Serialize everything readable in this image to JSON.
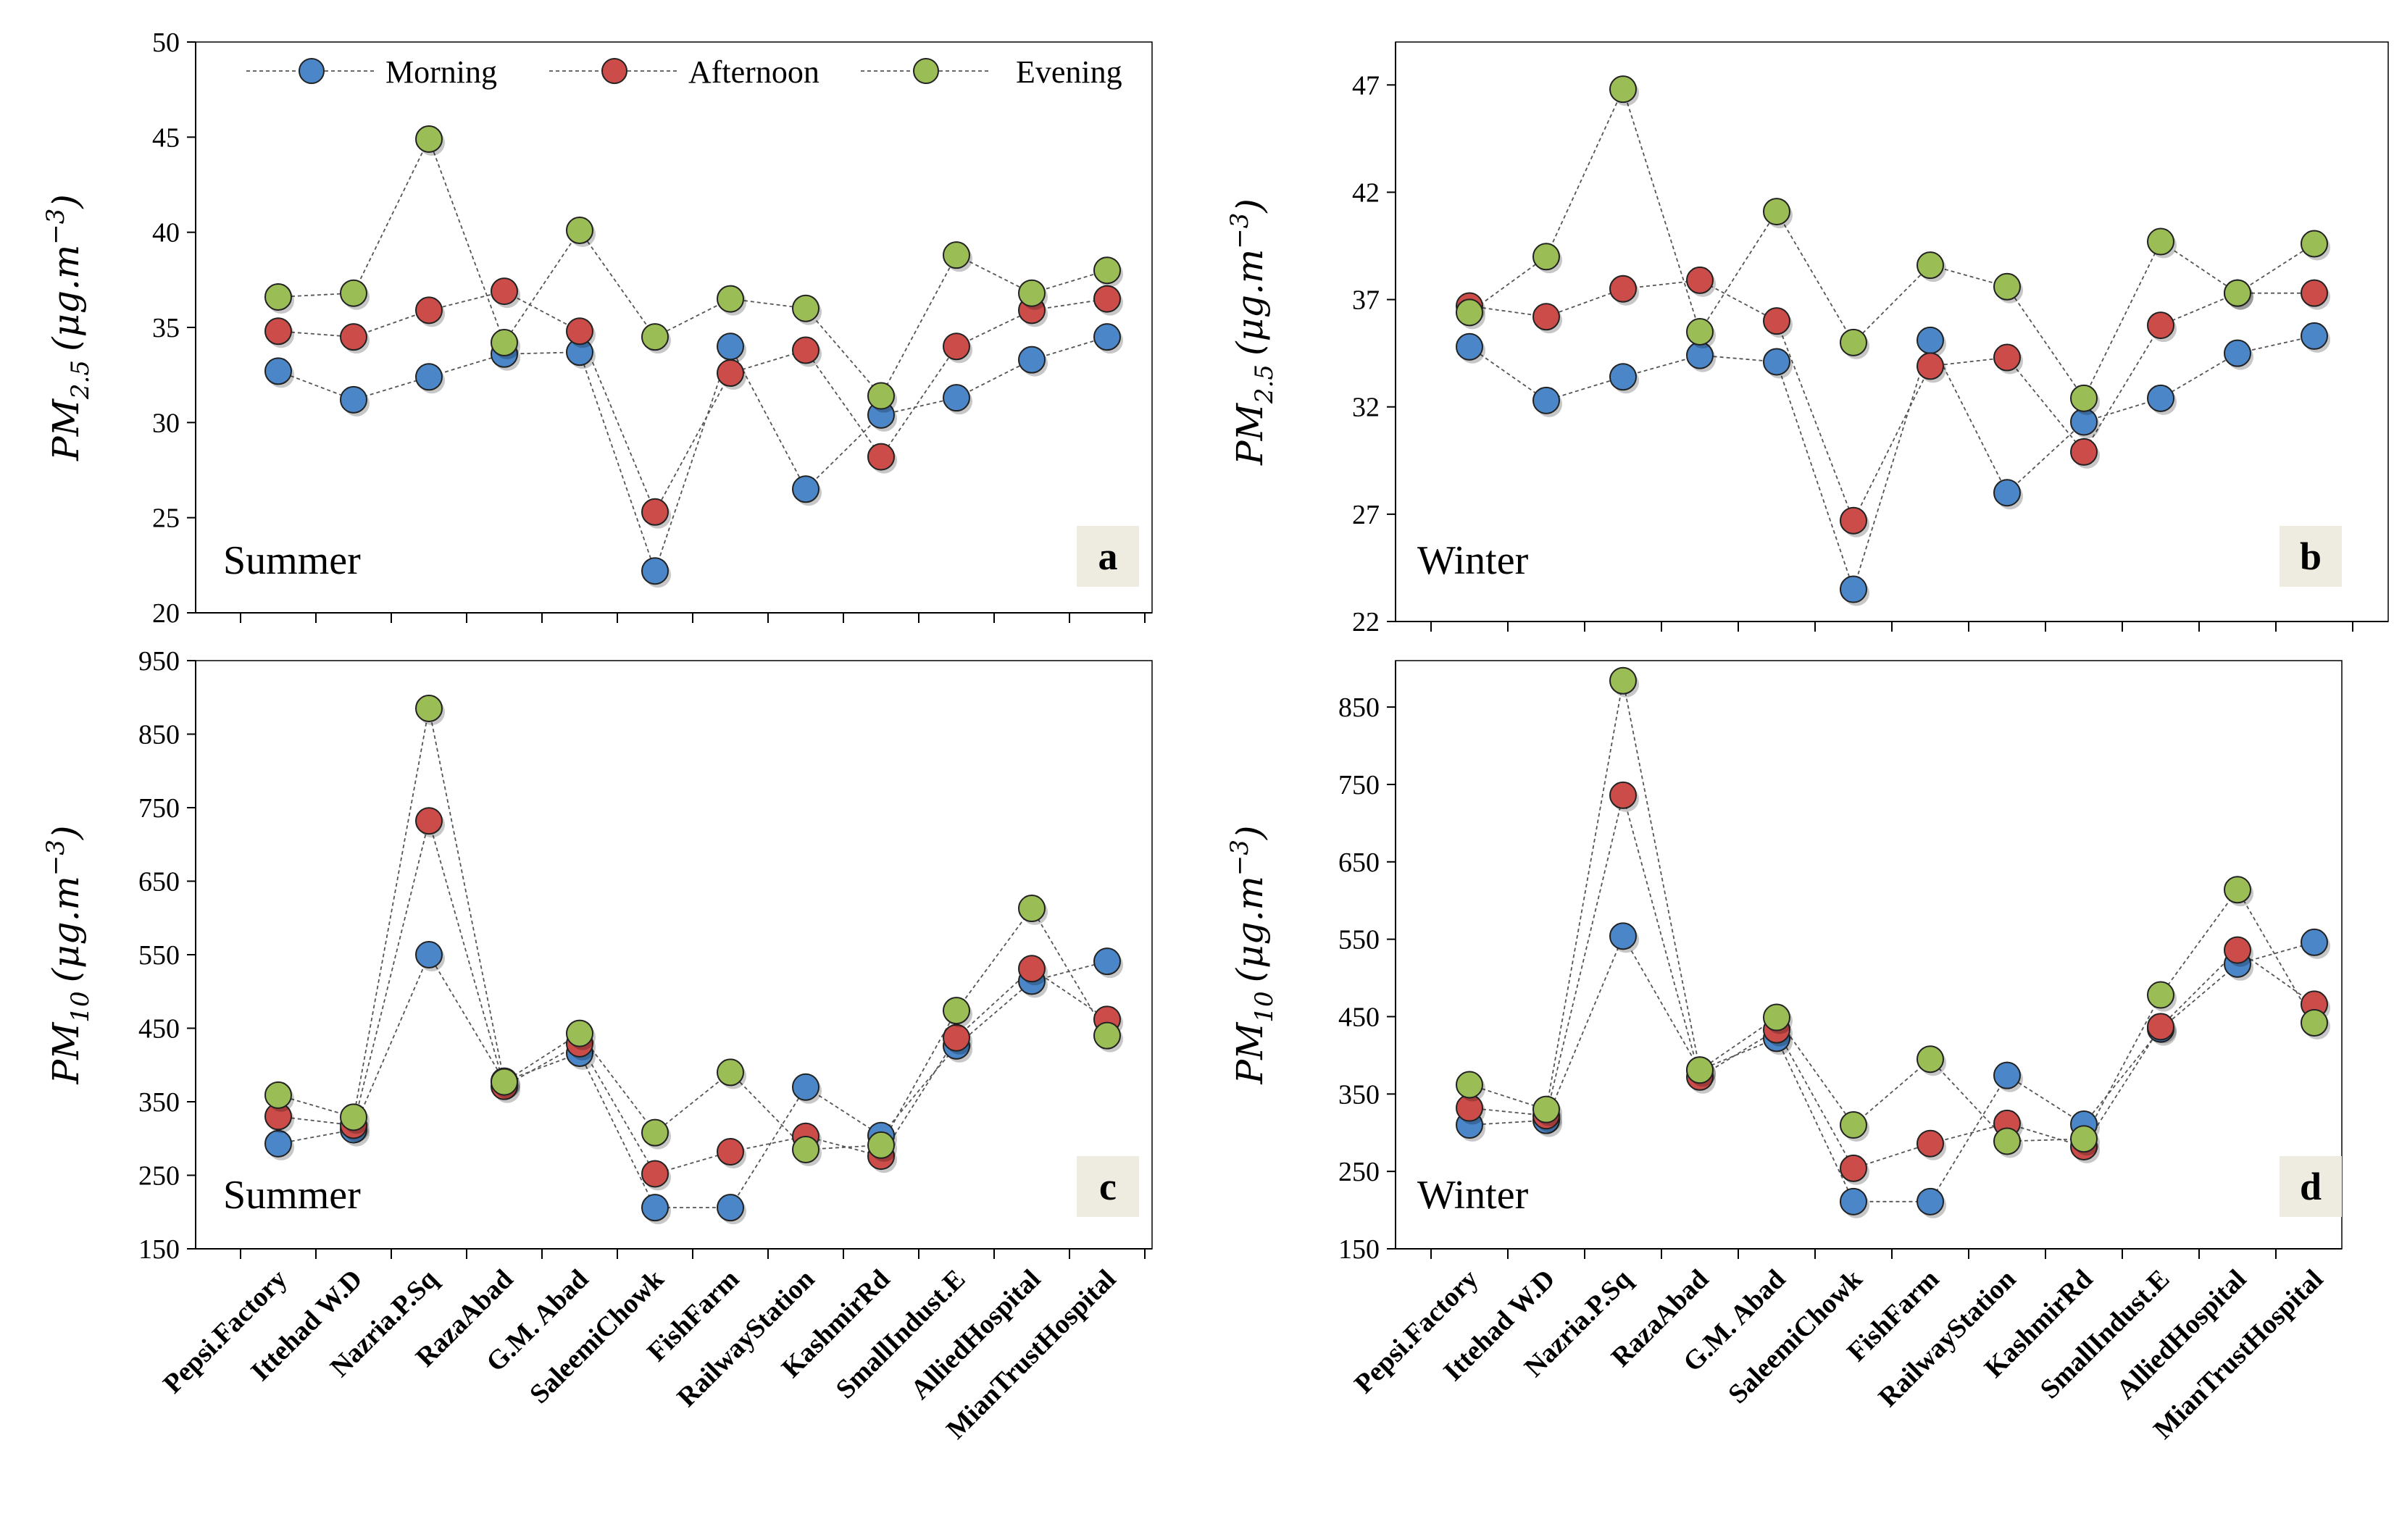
{
  "figure": {
    "legend": {
      "morning": "Morning",
      "afternoon": "Afternoon",
      "evening": "Evening"
    },
    "colors": {
      "Morning": "#4a86c8",
      "Afternoon": "#cc4c4a",
      "Evening": "#9bbd56"
    }
  },
  "chart_data": [
    {
      "id": "a",
      "type": "line",
      "panel_label": "a",
      "season": "Summer",
      "ylabel": "PM",
      "ylabel_sub": "2.5",
      "yunit_open": "(μg.m",
      "yunit_exp": "−3",
      "yunit_close": ")",
      "ylim": [
        20,
        50
      ],
      "yticks": [
        20,
        25,
        30,
        35,
        40,
        45,
        50
      ],
      "categories": [
        "Pepsi.Factory",
        "Ittehad W.D",
        "Nazria.P.Sq",
        "RazaAbad",
        "G.M. Abad",
        "SaleemiChowk",
        "FishFarm",
        "RailwayStation",
        "KashmirRd",
        "SmallIndust.E",
        "AlliedHospital",
        "MianTrustHospital"
      ],
      "series": [
        {
          "name": "Morning",
          "values": [
            32.7,
            31.2,
            32.4,
            33.6,
            33.7,
            22.2,
            34.0,
            26.5,
            30.4,
            31.3,
            33.3,
            34.5
          ]
        },
        {
          "name": "Afternoon",
          "values": [
            34.8,
            34.5,
            35.9,
            36.9,
            34.8,
            25.3,
            32.6,
            33.8,
            28.2,
            34.0,
            35.9,
            36.5
          ]
        },
        {
          "name": "Evening",
          "values": [
            36.6,
            36.8,
            44.9,
            34.2,
            40.1,
            34.5,
            36.5,
            36.0,
            31.4,
            38.8,
            36.8,
            38.0
          ]
        }
      ]
    },
    {
      "id": "b",
      "type": "line",
      "panel_label": "b",
      "season": "Winter",
      "ylabel": "PM",
      "ylabel_sub": "2.5",
      "yunit_open": "(μg.m",
      "yunit_exp": "−3",
      "yunit_close": ")",
      "ylim": [
        22,
        49
      ],
      "yticks": [
        22,
        27,
        32,
        37,
        42,
        47
      ],
      "categories": [
        "Pepsi.Factory",
        "Ittehad W.D",
        "Nazria.P.Sq",
        "RazaAbad",
        "G.M. Abad",
        "SaleemiChowk",
        "FishFarm",
        "RailwayStation",
        "KashmirRd",
        "SmallIndust.E",
        "AlliedHospital",
        "MianTrustHospital"
      ],
      "series": [
        {
          "name": "Morning",
          "values": [
            34.8,
            32.3,
            33.4,
            34.4,
            34.1,
            23.5,
            35.1,
            28.0,
            31.3,
            32.4,
            34.5,
            35.3
          ]
        },
        {
          "name": "Afternoon",
          "values": [
            36.7,
            36.2,
            37.5,
            37.9,
            36.0,
            26.7,
            33.9,
            34.3,
            29.9,
            35.8,
            37.3,
            37.3
          ]
        },
        {
          "name": "Evening",
          "values": [
            36.4,
            39.0,
            46.8,
            35.5,
            41.1,
            35.0,
            38.6,
            37.6,
            32.4,
            39.7,
            37.3,
            39.6
          ]
        }
      ]
    },
    {
      "id": "c",
      "type": "line",
      "panel_label": "c",
      "season": "Summer",
      "ylabel": "PM",
      "ylabel_sub": "10",
      "yunit_open": "(μg.m",
      "yunit_exp": "−3",
      "yunit_close": ")",
      "ylim": [
        150,
        950
      ],
      "yticks": [
        150,
        250,
        350,
        450,
        550,
        650,
        750,
        850,
        950
      ],
      "categories": [
        "Pepsi.Factory",
        "Ittehad W.D",
        "Nazria.P.Sq",
        "RazaAbad",
        "G.M. Abad",
        "SaleemiChowk",
        "FishFarm",
        "RailwayStation",
        "KashmirRd",
        "SmallIndust.E",
        "AlliedHospital",
        "MianTrustHospital"
      ],
      "series": [
        {
          "name": "Morning",
          "values": [
            293,
            312,
            550,
            378,
            416,
            206,
            206,
            370,
            304,
            426,
            514,
            541
          ]
        },
        {
          "name": "Afternoon",
          "values": [
            330,
            318,
            732,
            371,
            429,
            252,
            282,
            303,
            276,
            437,
            531,
            462
          ]
        },
        {
          "name": "Evening",
          "values": [
            359,
            329,
            885,
            377,
            443,
            308,
            390,
            285,
            291,
            474,
            613,
            440
          ]
        }
      ]
    },
    {
      "id": "d",
      "type": "line",
      "panel_label": "d",
      "season": "Winter",
      "ylabel": "PM",
      "ylabel_sub": "10",
      "yunit_open": "(μg.m",
      "yunit_exp": "−3",
      "yunit_close": ")",
      "ylim": [
        150,
        910
      ],
      "yticks": [
        150,
        250,
        350,
        450,
        550,
        650,
        750,
        850
      ],
      "categories": [
        "Pepsi.Factory",
        "Ittehad W.D",
        "Nazria.P.Sq",
        "RazaAbad",
        "G.M. Abad",
        "SaleemiChowk",
        "FishFarm",
        "RailwayStation",
        "KashmirRd",
        "SmallIndust.E",
        "AlliedHospital",
        "MianTrustHospital"
      ],
      "series": [
        {
          "name": "Morning",
          "values": [
            310,
            316,
            554,
            381,
            422,
            211,
            211,
            374,
            311,
            434,
            518,
            546
          ]
        },
        {
          "name": "Afternoon",
          "values": [
            332,
            322,
            736,
            372,
            433,
            254,
            286,
            312,
            282,
            437,
            536,
            466
          ]
        },
        {
          "name": "Evening",
          "values": [
            362,
            330,
            884,
            381,
            449,
            310,
            395,
            289,
            292,
            478,
            614,
            442
          ]
        }
      ]
    }
  ]
}
